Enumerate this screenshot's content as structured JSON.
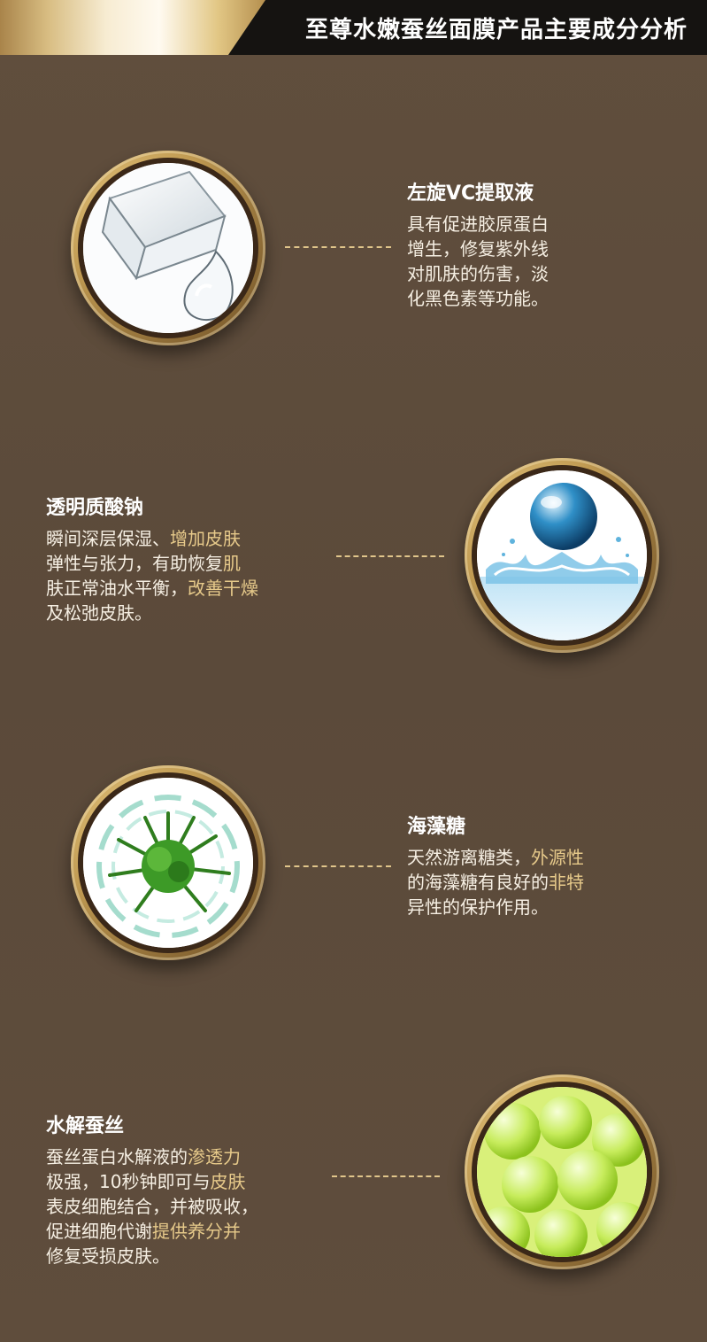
{
  "header": {
    "title": "至尊水嫩蚕丝面膜产品主要成分分析"
  },
  "ingredients": [
    {
      "title": "左旋VC提取液",
      "lines": [
        [
          {
            "t": "具有促进胶原蛋白",
            "c": "white"
          }
        ],
        [
          {
            "t": "增生，修复紫外线",
            "c": "white"
          }
        ],
        [
          {
            "t": "对肌肤的伤害，淡",
            "c": "white"
          }
        ],
        [
          {
            "t": "化黑色素等功能。",
            "c": "white"
          }
        ]
      ],
      "image_icon": "water-drop-cube-icon"
    },
    {
      "title": "透明质酸钠",
      "lines": [
        [
          {
            "t": "瞬间深层保湿、",
            "c": "white"
          },
          {
            "t": "增加皮肤",
            "c": "gold"
          }
        ],
        [
          {
            "t": "弹性与张力，有助恢复",
            "c": "white"
          },
          {
            "t": "肌",
            "c": "gold"
          }
        ],
        [
          {
            "t": "肤正常油水平衡，",
            "c": "white"
          },
          {
            "t": "改善干燥",
            "c": "gold"
          }
        ],
        [
          {
            "t": "及松弛皮肤。",
            "c": "white"
          }
        ]
      ],
      "image_icon": "water-splash-sphere-icon"
    },
    {
      "title": "海藻糖",
      "lines": [
        [
          {
            "t": "天然游离糖类，",
            "c": "white"
          },
          {
            "t": "外源性",
            "c": "gold"
          }
        ],
        [
          {
            "t": "的海藻糖有良好的",
            "c": "white"
          },
          {
            "t": "非特",
            "c": "gold"
          }
        ],
        [
          {
            "t": "异性的保护作用。",
            "c": "white"
          }
        ]
      ],
      "image_icon": "seaweed-splash-icon"
    },
    {
      "title": "水解蚕丝",
      "lines": [
        [
          {
            "t": "蚕丝蛋白水解液的",
            "c": "white"
          },
          {
            "t": "渗透力",
            "c": "gold"
          }
        ],
        [
          {
            "t": "极强，10秒钟即可与",
            "c": "white"
          },
          {
            "t": "皮肤",
            "c": "gold"
          }
        ],
        [
          {
            "t": "表皮细胞结合，并被吸收，",
            "c": "white"
          }
        ],
        [
          {
            "t": "促进细胞代谢",
            "c": "white"
          },
          {
            "t": "提供养分并",
            "c": "gold"
          }
        ],
        [
          {
            "t": "修复受损皮肤。",
            "c": "white"
          }
        ]
      ],
      "image_icon": "silk-cocoon-icon"
    }
  ]
}
